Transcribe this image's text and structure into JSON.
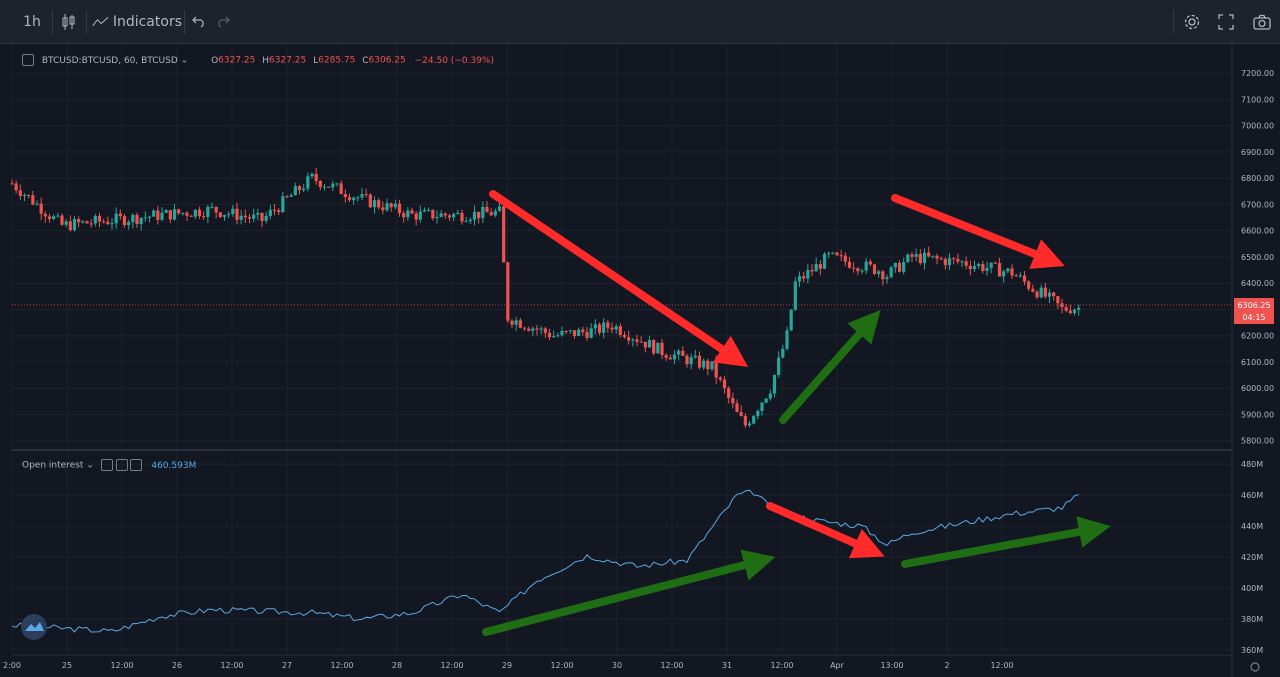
{
  "toolbar": {
    "interval": "1h",
    "indicators_label": "Indicators"
  },
  "main_legend": {
    "symbol": "BTCUSD:BTCUSD, 60, BTCUSD",
    "o_label": "O",
    "o": "6327.25",
    "h_label": "H",
    "h": "6327.25",
    "l_label": "L",
    "l": "6285.75",
    "c_label": "C",
    "c": "6306.25",
    "change": "−24.50 (−0.39%)"
  },
  "price_tag": {
    "price": "6306.25",
    "countdown": "04:15"
  },
  "oi_legend": {
    "name": "Open interest",
    "value": "460.593M"
  },
  "colors": {
    "up": "#26a69a",
    "down": "#ef5350",
    "oi_line": "#5aa9e6",
    "arrow_red": "#ff2a2a",
    "arrow_green": "#1f6e14"
  },
  "chart_data": [
    {
      "type": "candlestick",
      "series": [
        {
          "name": "BTCUSD:BTCUSD, 60, BTCUSD",
          "anchors_x_hours": [
            0,
            12,
            24,
            36,
            48,
            60,
            72,
            84,
            96,
            108,
            117,
            119,
            130,
            140,
            144,
            156,
            168,
            174,
            176,
            182,
            186,
            188,
            196,
            208,
            210,
            216,
            228,
            240,
            245,
            250,
            252,
            254
          ],
          "anchors_close": [
            6780,
            6620,
            6640,
            6660,
            6680,
            6640,
            6800,
            6720,
            6660,
            6660,
            6670,
            6270,
            6200,
            6220,
            6240,
            6140,
            6080,
            5900,
            5860,
            6000,
            6200,
            6400,
            6500,
            6450,
            6430,
            6500,
            6480,
            6440,
            6380,
            6330,
            6300,
            6306.25
          ]
        }
      ],
      "y_ticks": [
        "7200.00",
        "7100.00",
        "7000.00",
        "6900.00",
        "6800.00",
        "6700.00",
        "6600.00",
        "6500.00",
        "6400.00",
        "6300.00",
        "6200.00",
        "6100.00",
        "6000.00",
        "5900.00",
        "5800.00"
      ],
      "ylim": [
        5780,
        7250
      ],
      "last_price": 6306.25,
      "annotations": [
        "red arrow down 28–30",
        "green arrow up 30–31",
        "red arrow down 31–Apr"
      ]
    },
    {
      "type": "line",
      "series": [
        {
          "name": "Open interest",
          "anchors_x_hours": [
            0,
            24,
            36,
            48,
            60,
            72,
            84,
            96,
            108,
            117,
            126,
            138,
            150,
            162,
            174,
            178,
            182,
            192,
            204,
            210,
            216,
            228,
            240,
            252,
            256
          ],
          "anchors_y": [
            376,
            372,
            382,
            386,
            385,
            384,
            380,
            384,
            396,
            384,
            405,
            421,
            414,
            418,
            460,
            462,
            452,
            444,
            440,
            428,
            436,
            442,
            448,
            452,
            460
          ]
        }
      ],
      "y_ticks": [
        "480M",
        "460M",
        "440M",
        "420M",
        "400M",
        "380M",
        "360M"
      ],
      "ylim": [
        358,
        484
      ],
      "annotations": [
        "green arrow up 28–30",
        "red arrow down 30–31",
        "green arrow up 31–Apr"
      ]
    }
  ],
  "x_ticks": [
    "2:00",
    "25",
    "12:00",
    "26",
    "12:00",
    "27",
    "12:00",
    "28",
    "12:00",
    "29",
    "12:00",
    "30",
    "12:00",
    "31",
    "12:00",
    "Apr",
    "13:00",
    "2",
    "12:00"
  ]
}
